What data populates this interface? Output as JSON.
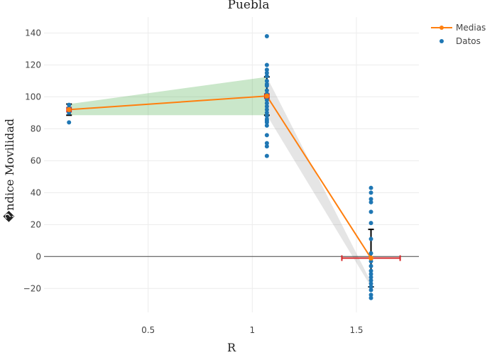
{
  "chart_data": {
    "type": "scatter",
    "title": "Puebla",
    "xlabel": "R",
    "ylabel": "�ndice Movilidad",
    "xlim": [
      0.0,
      1.8
    ],
    "ylim": [
      -35,
      150
    ],
    "x_ticks": [
      0.5,
      1,
      1.5
    ],
    "x_tick_labels": [
      "0.5",
      "1",
      "1.5"
    ],
    "y_ticks": [
      -20,
      0,
      20,
      40,
      60,
      80,
      100,
      120,
      140
    ],
    "y_tick_labels": [
      "−20",
      "0",
      "20",
      "40",
      "60",
      "80",
      "100",
      "120",
      "140"
    ],
    "grid": true,
    "legend_position": "top-right",
    "colors": {
      "medias": "#ff7f0e",
      "datos": "#1f77b4",
      "band_green": "#2ca02c",
      "band_gray": "#7f7f7f",
      "error_black": "#000000",
      "error_red": "#d62728"
    },
    "series": [
      {
        "name": "Medias",
        "type": "line+markers",
        "x": [
          0.12,
          1.07,
          1.57
        ],
        "y": [
          92,
          100.5,
          -1
        ],
        "y_error": [
          3.5,
          12,
          18
        ],
        "x_error": [
          0.01,
          0.01,
          0.14
        ]
      },
      {
        "name": "Datos",
        "type": "markers",
        "x": [
          0.12,
          0.12,
          0.12,
          0.12,
          0.12,
          1.07,
          1.07,
          1.07,
          1.07,
          1.07,
          1.07,
          1.07,
          1.07,
          1.07,
          1.07,
          1.07,
          1.07,
          1.07,
          1.07,
          1.07,
          1.07,
          1.07,
          1.07,
          1.07,
          1.07,
          1.07,
          1.07,
          1.07,
          1.07,
          1.07,
          1.57,
          1.57,
          1.57,
          1.57,
          1.57,
          1.57,
          1.57,
          1.57,
          1.57,
          1.57,
          1.57,
          1.57,
          1.57,
          1.57,
          1.57,
          1.57,
          1.57,
          1.57,
          1.57
        ],
        "y": [
          84,
          90,
          92,
          93,
          95,
          138,
          120,
          117,
          115,
          113,
          110,
          107,
          104,
          102,
          100,
          98,
          96,
          94,
          92,
          90,
          88,
          86,
          84,
          82,
          76,
          71,
          69,
          63,
          85,
          108,
          43,
          40,
          36,
          34,
          28,
          21,
          11,
          -3,
          -6,
          -9,
          -11,
          -13,
          -15,
          -17,
          -19,
          -21,
          -24,
          -26,
          2
        ]
      }
    ],
    "bands": [
      {
        "color": "green",
        "polygon": [
          [
            0.12,
            95.5
          ],
          [
            1.07,
            112.5
          ],
          [
            1.07,
            88.5
          ],
          [
            0.12,
            88.5
          ]
        ]
      },
      {
        "color": "gray",
        "polygon": [
          [
            1.07,
            112.5
          ],
          [
            1.57,
            -16
          ],
          [
            1.57,
            -19
          ],
          [
            1.07,
            88.5
          ]
        ]
      }
    ]
  }
}
